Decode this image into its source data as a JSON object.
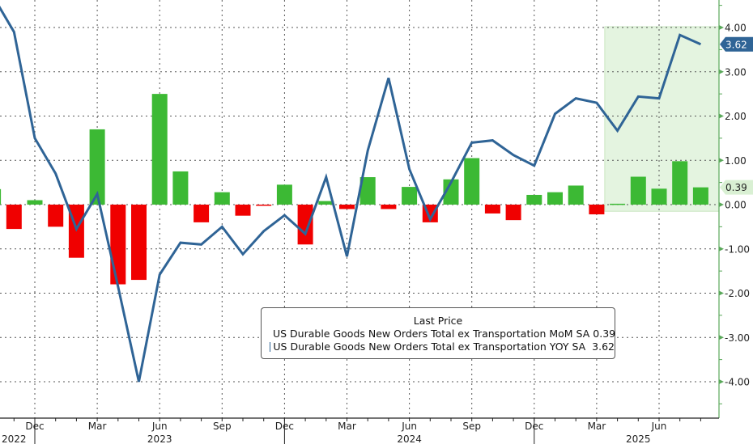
{
  "chart_data": {
    "type": "bar+line",
    "legend": {
      "title": "Last Price",
      "placement": "bottom-center",
      "entries": [
        {
          "label": "US Durable Goods New Orders Total ex Transportation MoM SA",
          "last": "0.39",
          "color": "#3cb934"
        },
        {
          "label": "US Durable Goods New Orders Total ex Transportation YOY SA",
          "last": "3.62",
          "color": "#2f6496"
        }
      ]
    },
    "months": [
      "2022-10",
      "2022-11",
      "2022-12",
      "2023-01",
      "2023-02",
      "2023-03",
      "2023-04",
      "2023-05",
      "2023-06",
      "2023-07",
      "2023-08",
      "2023-09",
      "2023-10",
      "2023-11",
      "2023-12",
      "2024-01",
      "2024-02",
      "2024-03",
      "2024-04",
      "2024-05",
      "2024-06",
      "2024-07",
      "2024-08",
      "2024-09",
      "2024-10",
      "2024-11",
      "2024-12",
      "2025-01",
      "2025-02",
      "2025-03",
      "2025-04",
      "2025-05",
      "2025-06",
      "2025-07",
      "2025-08"
    ],
    "series": [
      {
        "name": "US Durable Goods New Orders Total ex Transportation MoM SA",
        "type": "bar",
        "values": [
          0.35,
          -0.55,
          0.1,
          -0.5,
          -1.2,
          1.7,
          -1.8,
          -1.7,
          2.5,
          0.75,
          -0.4,
          0.28,
          -0.25,
          -0.02,
          0.45,
          -0.9,
          0.08,
          -0.1,
          0.62,
          -0.1,
          0.4,
          -0.4,
          0.57,
          1.05,
          -0.2,
          -0.35,
          0.22,
          0.28,
          0.43,
          -0.22,
          0.02,
          0.63,
          0.36,
          0.98,
          0.39
        ]
      },
      {
        "name": "US Durable Goods New Orders Total ex Transportation YOY SA",
        "type": "line",
        "values": [
          4.7,
          3.9,
          1.5,
          0.7,
          -0.55,
          0.24,
          -1.85,
          -4.0,
          -1.58,
          -0.86,
          -0.9,
          -0.5,
          -1.12,
          -0.6,
          -0.24,
          -0.66,
          0.62,
          -1.17,
          1.22,
          2.86,
          0.8,
          -0.33,
          0.5,
          1.4,
          1.45,
          1.12,
          0.88,
          2.05,
          2.4,
          2.3,
          1.67,
          2.44,
          2.4,
          3.83,
          3.62
        ]
      }
    ],
    "positive_color": "#3cb934",
    "negative_color": "#f00000",
    "highlight_region": {
      "from": "2025-03",
      "to": "2025-08",
      "color": "#e4f4e0"
    },
    "y_ticks": [
      "4.00",
      "3.00",
      "2.00",
      "1.00",
      "0.00",
      "-1.00",
      "-2.00",
      "-3.00",
      "-4.00"
    ],
    "ylim": [
      -4.6,
      4.6
    ],
    "x_tick_labels": [
      {
        "month": "2022-12",
        "label": "Dec"
      },
      {
        "month": "2023-03",
        "label": "Mar"
      },
      {
        "month": "2023-06",
        "label": "Jun"
      },
      {
        "month": "2023-09",
        "label": "Sep"
      },
      {
        "month": "2023-12",
        "label": "Dec"
      },
      {
        "month": "2024-03",
        "label": "Mar"
      },
      {
        "month": "2024-06",
        "label": "Jun"
      },
      {
        "month": "2024-09",
        "label": "Sep"
      },
      {
        "month": "2024-12",
        "label": "Dec"
      },
      {
        "month": "2025-03",
        "label": "Mar"
      },
      {
        "month": "2025-06",
        "label": "Jun"
      }
    ],
    "year_labels": [
      {
        "month": "2022-11",
        "label": "2022"
      },
      {
        "month": "2023-06",
        "label": "2023"
      },
      {
        "month": "2024-06",
        "label": "2024"
      },
      {
        "month": "2025-05",
        "label": "2025"
      }
    ],
    "last_value_tags": [
      {
        "value": 3.62,
        "label": "3.62",
        "color": "#2f6496"
      },
      {
        "value": 0.39,
        "label": "0.39",
        "color": "#3cb934"
      }
    ],
    "grid": true
  }
}
